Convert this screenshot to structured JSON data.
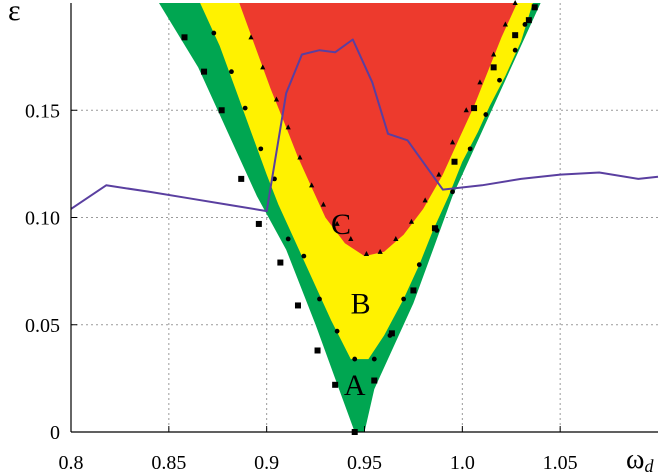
{
  "chart_data": {
    "type": "area",
    "title": "",
    "xlabel_main": "ω",
    "xlabel_sub": "d",
    "ylabel": "ε",
    "xlim": [
      0.8,
      1.1
    ],
    "ylim": [
      0,
      0.2
    ],
    "x_ticks": [
      {
        "value": 0.8,
        "label": "0.8"
      },
      {
        "value": 0.85,
        "label": "0.85"
      },
      {
        "value": 0.9,
        "label": "0.9"
      },
      {
        "value": 0.95,
        "label": "0.95"
      },
      {
        "value": 1.0,
        "label": "1.0"
      },
      {
        "value": 1.05,
        "label": "1.05"
      }
    ],
    "y_ticks": [
      {
        "value": 0,
        "label": "0"
      },
      {
        "value": 0.05,
        "label": "0.05"
      },
      {
        "value": 0.1,
        "label": "0.10"
      },
      {
        "value": 0.15,
        "label": "0.15"
      }
    ],
    "grid": true,
    "regions": [
      {
        "name": "A",
        "color": "#00a651",
        "label_at": [
          0.945,
          0.022
        ],
        "boundary": [
          [
            0.845,
            0.2
          ],
          [
            0.865,
            0.17
          ],
          [
            0.88,
            0.14
          ],
          [
            0.895,
            0.11
          ],
          [
            0.91,
            0.085
          ],
          [
            0.925,
            0.05
          ],
          [
            0.935,
            0.025
          ],
          [
            0.945,
            0.0
          ],
          [
            0.95,
            0.0
          ],
          [
            0.955,
            0.02
          ],
          [
            0.965,
            0.04
          ],
          [
            0.975,
            0.06
          ],
          [
            0.985,
            0.085
          ],
          [
            0.995,
            0.11
          ],
          [
            1.01,
            0.14
          ],
          [
            1.025,
            0.17
          ],
          [
            1.04,
            0.2
          ]
        ]
      },
      {
        "name": "B",
        "color": "#fff200",
        "label_at": [
          0.948,
          0.06
        ],
        "boundary": [
          [
            0.866,
            0.2
          ],
          [
            0.876,
            0.18
          ],
          [
            0.884,
            0.16
          ],
          [
            0.892,
            0.14
          ],
          [
            0.9,
            0.12
          ],
          [
            0.906,
            0.106
          ],
          [
            0.914,
            0.09
          ],
          [
            0.924,
            0.07
          ],
          [
            0.933,
            0.052
          ],
          [
            0.943,
            0.034
          ],
          [
            0.952,
            0.034
          ],
          [
            0.96,
            0.045
          ],
          [
            0.97,
            0.062
          ],
          [
            0.978,
            0.078
          ],
          [
            0.985,
            0.094
          ],
          [
            0.993,
            0.11
          ],
          [
            1.0,
            0.126
          ],
          [
            1.008,
            0.14
          ],
          [
            1.014,
            0.152
          ],
          [
            1.022,
            0.166
          ],
          [
            1.03,
            0.182
          ],
          [
            1.036,
            0.2
          ]
        ]
      },
      {
        "name": "C",
        "color": "#ed3a2d",
        "label_at": [
          0.938,
          0.097
        ],
        "boundary": [
          [
            0.886,
            0.2
          ],
          [
            0.894,
            0.18
          ],
          [
            0.902,
            0.16
          ],
          [
            0.91,
            0.142
          ],
          [
            0.916,
            0.128
          ],
          [
            0.923,
            0.114
          ],
          [
            0.93,
            0.1
          ],
          [
            0.94,
            0.088
          ],
          [
            0.95,
            0.082
          ],
          [
            0.96,
            0.084
          ],
          [
            0.97,
            0.092
          ],
          [
            0.98,
            0.104
          ],
          [
            0.99,
            0.12
          ],
          [
            0.998,
            0.136
          ],
          [
            1.006,
            0.152
          ],
          [
            1.013,
            0.168
          ],
          [
            1.02,
            0.184
          ],
          [
            1.028,
            0.2
          ]
        ]
      }
    ],
    "markers": [
      {
        "shape": "square",
        "points": [
          [
            0.858,
            0.184
          ],
          [
            0.868,
            0.168
          ],
          [
            0.877,
            0.15
          ],
          [
            0.887,
            0.118
          ],
          [
            0.896,
            0.097
          ],
          [
            0.907,
            0.079
          ],
          [
            0.916,
            0.059
          ],
          [
            0.926,
            0.038
          ],
          [
            0.935,
            0.022
          ],
          [
            0.945,
            0.0
          ],
          [
            0.955,
            0.024
          ],
          [
            0.964,
            0.046
          ],
          [
            0.975,
            0.066
          ],
          [
            0.986,
            0.095
          ],
          [
            0.996,
            0.126
          ],
          [
            1.006,
            0.151
          ],
          [
            1.016,
            0.17
          ],
          [
            1.027,
            0.185
          ],
          [
            1.034,
            0.192
          ],
          [
            1.037,
            0.198
          ]
        ]
      },
      {
        "shape": "circle",
        "points": [
          [
            0.873,
            0.186
          ],
          [
            0.882,
            0.168
          ],
          [
            0.889,
            0.151
          ],
          [
            0.897,
            0.132
          ],
          [
            0.904,
            0.118
          ],
          [
            0.911,
            0.09
          ],
          [
            0.919,
            0.082
          ],
          [
            0.927,
            0.062
          ],
          [
            0.936,
            0.047
          ],
          [
            0.945,
            0.034
          ],
          [
            0.955,
            0.034
          ],
          [
            0.963,
            0.045
          ],
          [
            0.97,
            0.062
          ],
          [
            0.978,
            0.078
          ],
          [
            0.987,
            0.094
          ],
          [
            0.995,
            0.112
          ],
          [
            1.004,
            0.132
          ],
          [
            1.012,
            0.148
          ],
          [
            1.019,
            0.164
          ],
          [
            1.027,
            0.178
          ],
          [
            1.032,
            0.19
          ]
        ]
      },
      {
        "shape": "triangle",
        "points": [
          [
            0.892,
            0.184
          ],
          [
            0.898,
            0.17
          ],
          [
            0.905,
            0.155
          ],
          [
            0.911,
            0.142
          ],
          [
            0.917,
            0.128
          ],
          [
            0.923,
            0.115
          ],
          [
            0.929,
            0.106
          ],
          [
            0.936,
            0.097
          ],
          [
            0.943,
            0.09
          ],
          [
            0.951,
            0.083
          ],
          [
            0.958,
            0.084
          ],
          [
            0.966,
            0.09
          ],
          [
            0.974,
            0.098
          ],
          [
            0.981,
            0.108
          ],
          [
            0.988,
            0.12
          ],
          [
            0.995,
            0.135
          ],
          [
            1.002,
            0.15
          ],
          [
            1.009,
            0.163
          ],
          [
            1.016,
            0.176
          ],
          [
            1.022,
            0.19
          ],
          [
            1.027,
            0.2
          ]
        ]
      }
    ],
    "series": [
      {
        "color": "#5a3fa0",
        "x": [
          0.8,
          0.818,
          0.84,
          0.86,
          0.88,
          0.9,
          0.91,
          0.918,
          0.927,
          0.935,
          0.944,
          0.954,
          0.962,
          0.972,
          0.99,
          1.01,
          1.03,
          1.05,
          1.07,
          1.09,
          1.1
        ],
        "y": [
          0.104,
          0.115,
          0.112,
          0.109,
          0.106,
          0.103,
          0.158,
          0.176,
          0.178,
          0.177,
          0.183,
          0.163,
          0.139,
          0.136,
          0.113,
          0.115,
          0.118,
          0.12,
          0.121,
          0.118,
          0.119
        ]
      }
    ]
  }
}
